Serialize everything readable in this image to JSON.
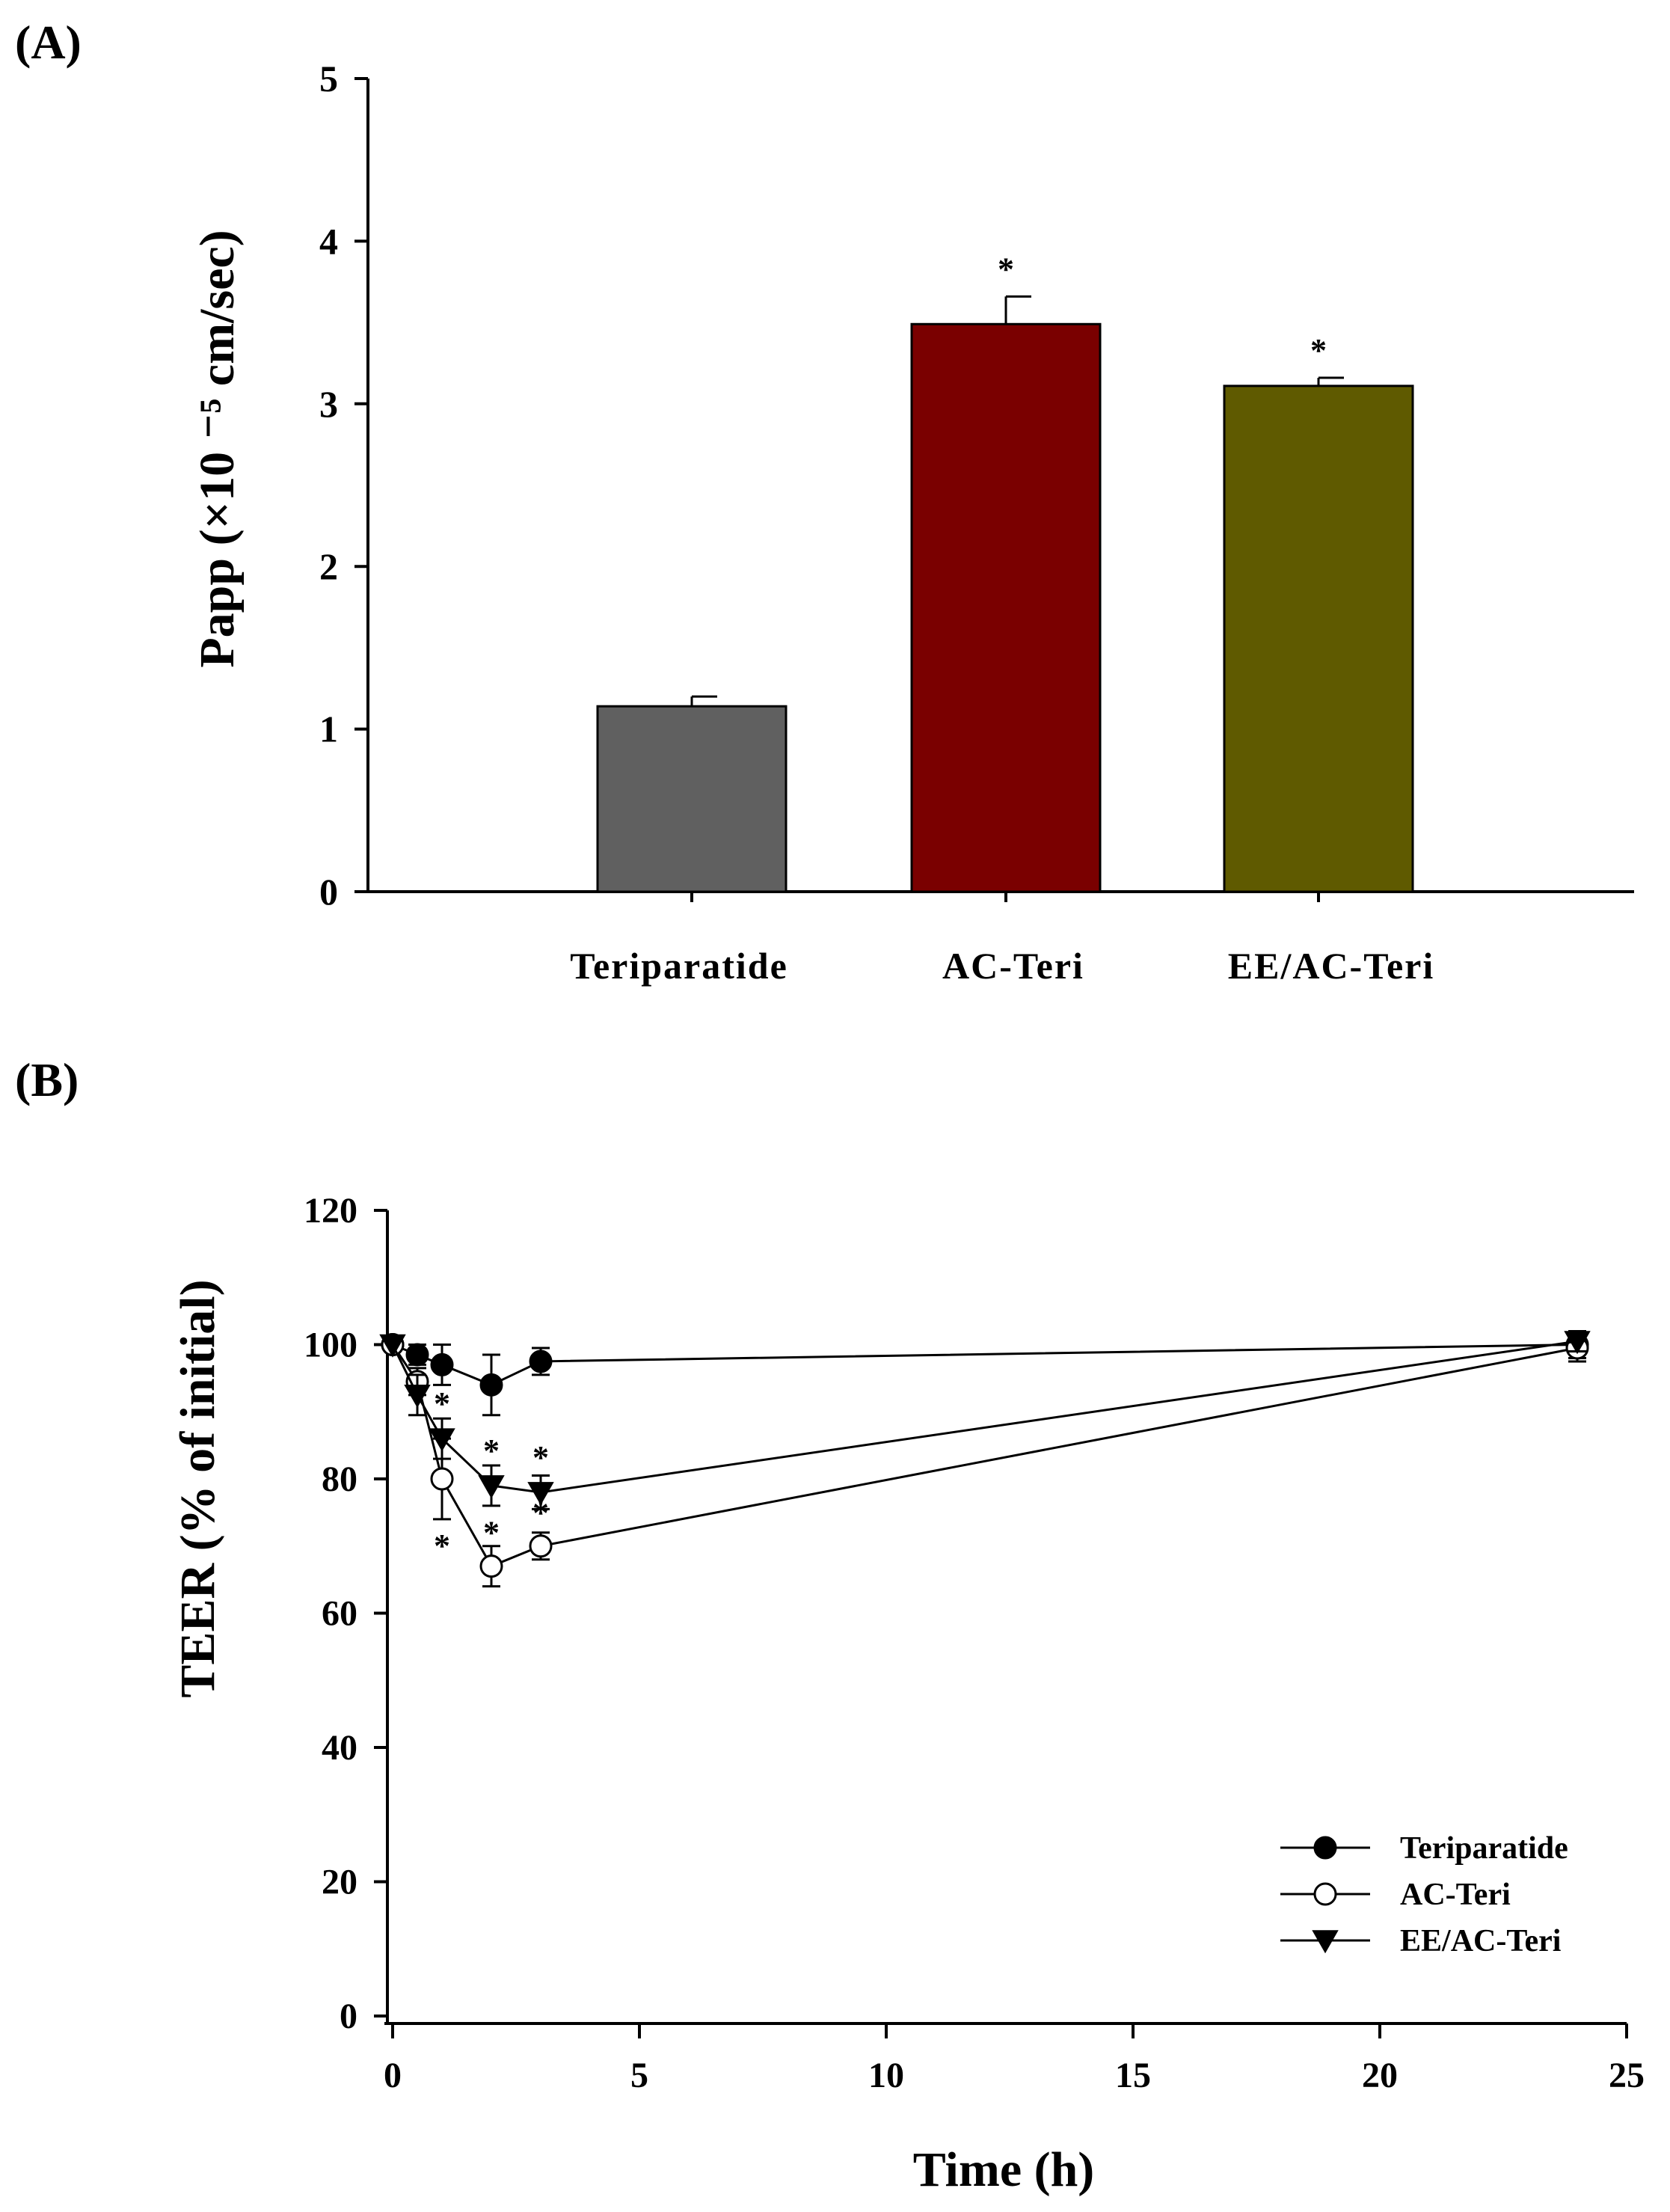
{
  "chart_data": [
    {
      "type": "bar",
      "panel_label": "(A)",
      "ylabel": "Papp (×10 ⁻⁵ cm/sec)",
      "xlabel": "",
      "ylim": [
        0,
        5
      ],
      "yticks": [
        0,
        1,
        2,
        3,
        4,
        5
      ],
      "categories": [
        "Teriparatide",
        "AC-Teri",
        "EE/AC-Teri"
      ],
      "values": [
        1.14,
        3.49,
        3.11
      ],
      "errors": [
        0.06,
        0.17,
        0.05
      ],
      "significance": [
        "",
        "*",
        "*"
      ],
      "colors": [
        "#606060",
        "#7a0000",
        "#5f5a00"
      ],
      "grid": false
    },
    {
      "type": "line",
      "panel_label": "(B)",
      "xlabel": "Time (h)",
      "ylabel": "TEER (% of initial)",
      "xlim": [
        0,
        25
      ],
      "ylim": [
        0,
        120
      ],
      "xticks": [
        0,
        5,
        10,
        15,
        20,
        25
      ],
      "yticks": [
        0,
        20,
        40,
        60,
        80,
        100,
        120
      ],
      "x": [
        0,
        0.5,
        1,
        2,
        3,
        24
      ],
      "series": [
        {
          "name": "Teriparatide",
          "marker": "filled-circle",
          "values": [
            100,
            98.5,
            97,
            94,
            97.5,
            100
          ],
          "errors": [
            0.5,
            1.5,
            3,
            4.5,
            2,
            2
          ],
          "significance": [
            "",
            "",
            "",
            "",
            "",
            ""
          ]
        },
        {
          "name": "AC-Teri",
          "marker": "open-circle",
          "values": [
            100,
            94.5,
            80,
            67,
            70,
            99.5
          ],
          "errors": [
            0.5,
            2,
            6,
            3,
            2,
            2
          ],
          "significance": [
            "",
            "",
            "*",
            "*",
            "*",
            ""
          ]
        },
        {
          "name": "EE/AC-Teri",
          "marker": "filled-triangle-down",
          "values": [
            100,
            92.5,
            86,
            79,
            78,
            100.5
          ],
          "errors": [
            0.5,
            3,
            3,
            3,
            2.5,
            1.5
          ],
          "significance": [
            "",
            "",
            "*",
            "*",
            "*",
            ""
          ]
        }
      ],
      "legend_position": "bottom-right",
      "grid": false
    }
  ]
}
